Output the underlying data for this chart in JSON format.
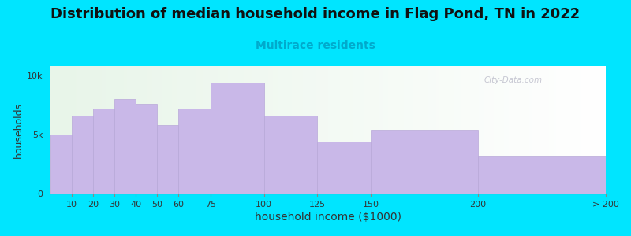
{
  "title": "Distribution of median household income in Flag Pond, TN in 2022",
  "subtitle": "Multirace residents",
  "xlabel": "household income ($1000)",
  "ylabel": "households",
  "bar_left_edges": [
    0,
    10,
    20,
    30,
    40,
    50,
    60,
    75,
    100,
    125,
    150,
    200
  ],
  "bar_widths": [
    10,
    10,
    10,
    10,
    10,
    10,
    15,
    25,
    25,
    25,
    50,
    60
  ],
  "bar_values": [
    5000,
    6600,
    7200,
    8000,
    7600,
    5800,
    7200,
    9400,
    6600,
    4400,
    5400,
    3200
  ],
  "bar_xtick_positions": [
    10,
    20,
    30,
    40,
    50,
    60,
    75,
    100,
    125,
    150,
    200,
    260
  ],
  "bar_xtick_labels": [
    "10",
    "20",
    "30",
    "40",
    "50",
    "60",
    "75",
    "100",
    "125",
    "150",
    "200",
    "> 200"
  ],
  "bar_color": "#c9b8e8",
  "bar_edgecolor": "#b8a8d8",
  "background_outer": "#00e5ff",
  "background_inner_left": "#e8f5e9",
  "background_inner_right": "#ffffff",
  "yticks": [
    0,
    5000,
    10000
  ],
  "ytick_labels": [
    "0",
    "5k",
    "10k"
  ],
  "ylim": [
    0,
    10800
  ],
  "xlim": [
    0,
    260
  ],
  "title_fontsize": 13,
  "subtitle_fontsize": 10,
  "subtitle_color": "#00aacc",
  "xlabel_fontsize": 10,
  "ylabel_fontsize": 9,
  "tick_fontsize": 8,
  "watermark_text": "City-Data.com",
  "watermark_color": "#aaaabc"
}
